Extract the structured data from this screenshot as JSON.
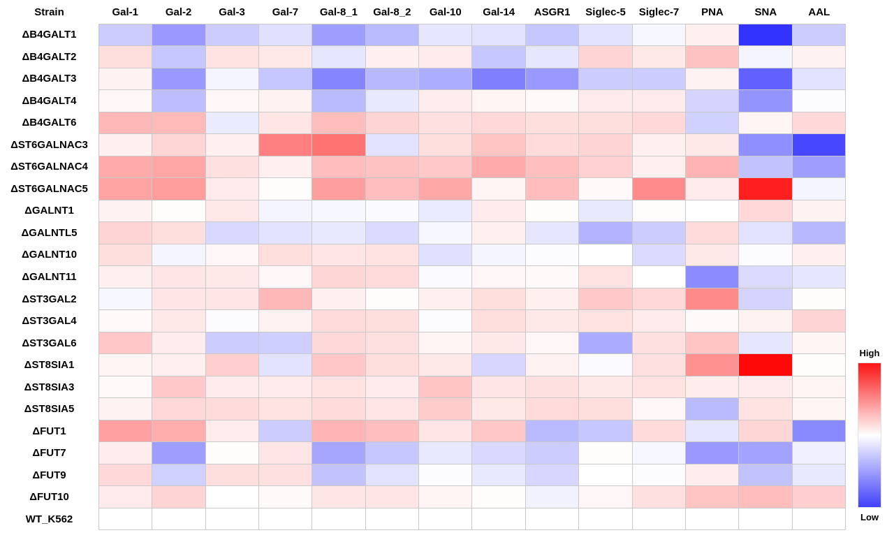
{
  "table": {
    "corner_label": "Strain"
  },
  "colorbar": {
    "high_label": "High",
    "low_label": "Low",
    "top_color": "#fb1414",
    "mid_color": "#ffffff",
    "bottom_color": "#4040fb"
  },
  "chart_data": {
    "type": "heatmap",
    "title": "",
    "columns": [
      "Gal-1",
      "Gal-2",
      "Gal-3",
      "Gal-7",
      "Gal-8_1",
      "Gal-8_2",
      "Gal-10",
      "Gal-14",
      "ASGR1",
      "Siglec-5",
      "Siglec-7",
      "PNA",
      "SNA",
      "AAL"
    ],
    "rows": [
      "ΔB4GALT1",
      "ΔB4GALT2",
      "ΔB4GALT3",
      "ΔB4GALT4",
      "ΔB4GALT6",
      "ΔST6GALNAC3",
      "ΔST6GALNAC4",
      "ΔST6GALNAC5",
      "ΔGALNT1",
      "ΔGALNTL5",
      "ΔGALNT10",
      "ΔGALNT11",
      "ΔST3GAL2",
      "ΔST3GAL4",
      "ΔST3GAL6",
      "ΔST8SIA1",
      "ΔST8SIA3",
      "ΔST8SIA5",
      "ΔFUT1",
      "ΔFUT7",
      "ΔFUT9",
      "ΔFUT10",
      "WT_K562"
    ],
    "value_scale": {
      "min": -1,
      "max": 1,
      "low_label": "Low",
      "high_label": "High",
      "colormap": "blue-white-red"
    },
    "legend_position": "bottom-right",
    "values": [
      [
        -0.2,
        -0.4,
        -0.2,
        -0.12,
        -0.38,
        -0.27,
        -0.1,
        -0.11,
        -0.22,
        -0.11,
        -0.03,
        0.06,
        -0.8,
        -0.2
      ],
      [
        0.13,
        -0.22,
        0.11,
        0.09,
        -0.1,
        0.06,
        0.08,
        -0.22,
        -0.1,
        0.17,
        0.09,
        0.24,
        -0.04,
        0.05
      ],
      [
        0.05,
        -0.4,
        -0.04,
        -0.22,
        -0.48,
        -0.28,
        -0.32,
        -0.5,
        -0.4,
        -0.2,
        -0.2,
        0.05,
        -0.62,
        -0.11
      ],
      [
        0.03,
        -0.26,
        0.03,
        0.05,
        -0.27,
        -0.09,
        0.07,
        0.04,
        0.02,
        0.08,
        0.08,
        -0.17,
        -0.42,
        -0.01
      ],
      [
        0.28,
        0.27,
        -0.08,
        0.1,
        0.26,
        0.17,
        0.12,
        0.15,
        0.13,
        0.13,
        0.15,
        -0.18,
        0.04,
        0.15
      ],
      [
        0.06,
        0.16,
        0.06,
        0.5,
        0.55,
        -0.11,
        0.13,
        0.23,
        0.14,
        0.17,
        0.06,
        0.09,
        -0.44,
        -0.72
      ],
      [
        0.33,
        0.35,
        0.12,
        0.06,
        0.26,
        0.24,
        0.21,
        0.33,
        0.25,
        0.18,
        0.06,
        0.3,
        -0.24,
        -0.38
      ],
      [
        0.36,
        0.39,
        0.08,
        0.01,
        0.38,
        0.25,
        0.34,
        0.04,
        0.26,
        0.02,
        0.45,
        0.08,
        0.88,
        -0.04
      ],
      [
        0.05,
        0.01,
        0.09,
        -0.04,
        -0.03,
        -0.02,
        -0.08,
        0.08,
        0.01,
        -0.09,
        0.01,
        0.0,
        0.15,
        0.05
      ],
      [
        0.17,
        0.13,
        -0.15,
        -0.11,
        -0.09,
        -0.14,
        -0.03,
        0.06,
        -0.1,
        -0.3,
        -0.2,
        0.14,
        -0.11,
        -0.28
      ],
      [
        0.13,
        -0.04,
        0.03,
        0.13,
        0.1,
        0.11,
        -0.12,
        -0.04,
        -0.01,
        0.0,
        -0.14,
        0.09,
        -0.01,
        0.06
      ],
      [
        0.06,
        0.1,
        0.09,
        0.03,
        0.16,
        0.14,
        -0.02,
        0.03,
        0.02,
        0.11,
        0.0,
        -0.45,
        -0.14,
        -0.1
      ],
      [
        -0.03,
        0.1,
        0.1,
        0.28,
        0.06,
        0.01,
        0.06,
        0.13,
        0.06,
        0.21,
        0.15,
        0.46,
        -0.17,
        0.01
      ],
      [
        0.02,
        0.09,
        -0.01,
        0.05,
        0.14,
        0.13,
        -0.01,
        0.13,
        0.09,
        0.11,
        0.08,
        0.02,
        0.05,
        0.17
      ],
      [
        0.22,
        0.07,
        -0.2,
        -0.19,
        0.15,
        0.12,
        0.04,
        0.09,
        0.03,
        -0.33,
        0.12,
        0.23,
        -0.1,
        0.04
      ],
      [
        0.04,
        0.06,
        0.19,
        -0.11,
        0.22,
        0.13,
        0.09,
        -0.16,
        0.05,
        -0.02,
        0.12,
        0.43,
        0.97,
        0.01
      ],
      [
        0.02,
        0.21,
        0.08,
        0.08,
        0.11,
        0.08,
        0.23,
        0.1,
        0.12,
        0.09,
        0.11,
        0.07,
        0.08,
        0.04
      ],
      [
        0.05,
        0.15,
        0.14,
        0.11,
        0.14,
        0.1,
        0.2,
        0.09,
        0.14,
        0.13,
        0.03,
        -0.27,
        0.11,
        0.04
      ],
      [
        0.37,
        0.32,
        0.07,
        -0.2,
        0.29,
        0.25,
        0.1,
        0.22,
        -0.27,
        -0.22,
        0.14,
        -0.1,
        0.16,
        -0.46
      ],
      [
        0.07,
        -0.38,
        0.01,
        0.1,
        -0.35,
        -0.22,
        -0.09,
        -0.15,
        -0.2,
        0.01,
        -0.03,
        -0.4,
        -0.36,
        -0.06
      ],
      [
        0.15,
        -0.18,
        0.13,
        0.12,
        -0.24,
        -0.11,
        -0.01,
        -0.09,
        -0.16,
        0.0,
        -0.01,
        0.07,
        -0.24,
        -0.09
      ],
      [
        0.08,
        0.17,
        0.0,
        0.02,
        0.1,
        0.1,
        0.04,
        0.01,
        -0.05,
        0.03,
        0.12,
        0.23,
        0.26,
        0.19
      ],
      [
        0.0,
        0.0,
        0.0,
        0.0,
        0.0,
        0.0,
        0.0,
        0.0,
        0.0,
        0.0,
        0.0,
        0.0,
        0.0,
        0.0
      ]
    ]
  }
}
